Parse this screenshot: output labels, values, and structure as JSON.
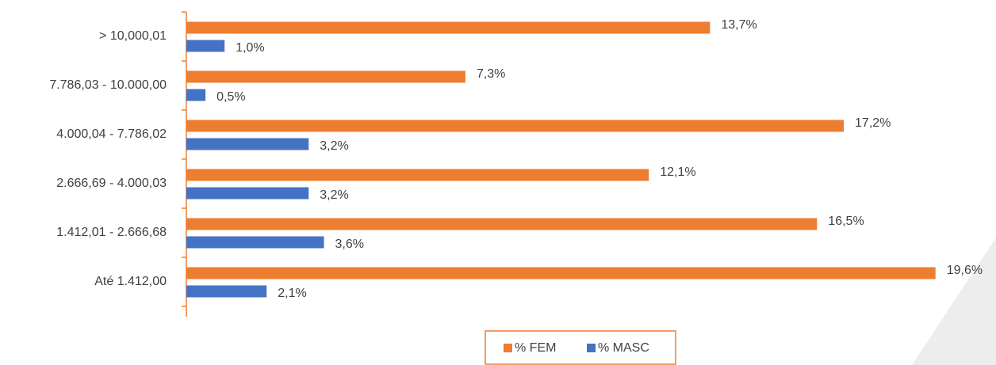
{
  "chart_data": {
    "type": "bar",
    "orientation": "horizontal",
    "categories": [
      "> 10,000,01",
      "7.786,03 - 10.000,00",
      "4.000,04 - 7.786,02",
      "2.666,69 - 4.000,03",
      "1.412,01 - 2.666,68",
      "Até 1.412,00"
    ],
    "series": [
      {
        "name": "% FEM",
        "color": "#ed7d31",
        "values": [
          13.7,
          7.3,
          17.2,
          12.1,
          16.5,
          19.6
        ],
        "value_labels": [
          "13,7%",
          "7,3%",
          "17,2%",
          "12,1%",
          "16,5%",
          "19,6%"
        ]
      },
      {
        "name": "% MASC",
        "color": "#4472c4",
        "values": [
          1.0,
          0.5,
          3.2,
          3.2,
          3.6,
          2.1
        ],
        "value_labels": [
          "1,0%",
          "0,5%",
          "3,2%",
          "3,2%",
          "3,6%",
          "2,1%"
        ]
      }
    ],
    "xlim": [
      0,
      20
    ],
    "legend": "bottom"
  }
}
